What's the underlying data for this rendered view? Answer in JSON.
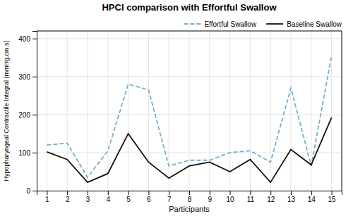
{
  "chart_data": {
    "type": "line",
    "title": "HPCI comparison with Effortful Swallow",
    "xlabel": "Participants",
    "ylabel": "Hypopharyngeal Contractile Integral (mmHg.cm.s)",
    "x": [
      1,
      2,
      3,
      4,
      5,
      6,
      7,
      8,
      9,
      10,
      11,
      12,
      13,
      14,
      15
    ],
    "xlim": [
      0.5,
      15.5
    ],
    "xticks": [
      1,
      2,
      3,
      4,
      5,
      6,
      7,
      8,
      9,
      10,
      11,
      12,
      13,
      14,
      15
    ],
    "ylim": [
      0,
      420
    ],
    "yticks": [
      0,
      100,
      200,
      300,
      400
    ],
    "grid": true,
    "legend": "upper right",
    "series": [
      {
        "name": "Effortful Swallow",
        "color": "#7aafc9",
        "line_style": "dashed",
        "values": [
          120,
          125,
          35,
          105,
          280,
          265,
          65,
          80,
          80,
          100,
          105,
          75,
          270,
          65,
          355
        ]
      },
      {
        "name": "Baseline Swallow",
        "color": "#111111",
        "line_style": "solid",
        "values": [
          102,
          82,
          22,
          45,
          150,
          75,
          33,
          65,
          75,
          50,
          82,
          22,
          108,
          68,
          192
        ]
      }
    ]
  }
}
